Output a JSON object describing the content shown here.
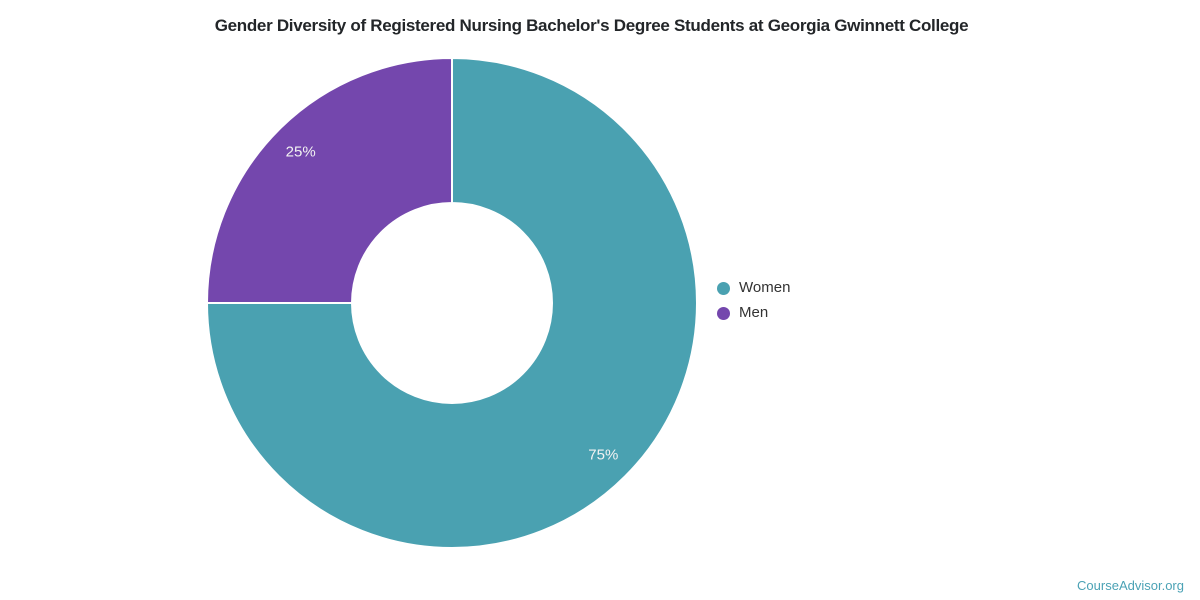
{
  "page": {
    "background": "#ffffff"
  },
  "chart_data": {
    "type": "pie",
    "subtype": "donut",
    "title": "Gender Diversity of Registered Nursing Bachelor's Degree Students at Georgia Gwinnett College",
    "categories": [
      "Women",
      "Men"
    ],
    "values": [
      75,
      25
    ],
    "slice_labels": [
      "75%",
      "25%"
    ],
    "colors": [
      "#4aa1b1",
      "#7447ad"
    ],
    "slice_label_color": "#f2f2f2",
    "separator_color": "#ffffff",
    "title_color": "#232629",
    "legend_text_color": "#333333",
    "legend_position": "right",
    "start_angle_deg": 0,
    "direction": "clockwise",
    "donut_hole_ratio": 0.41
  },
  "footer": {
    "brand": "CourseAdvisor.org",
    "color": "#4ba2b5"
  }
}
